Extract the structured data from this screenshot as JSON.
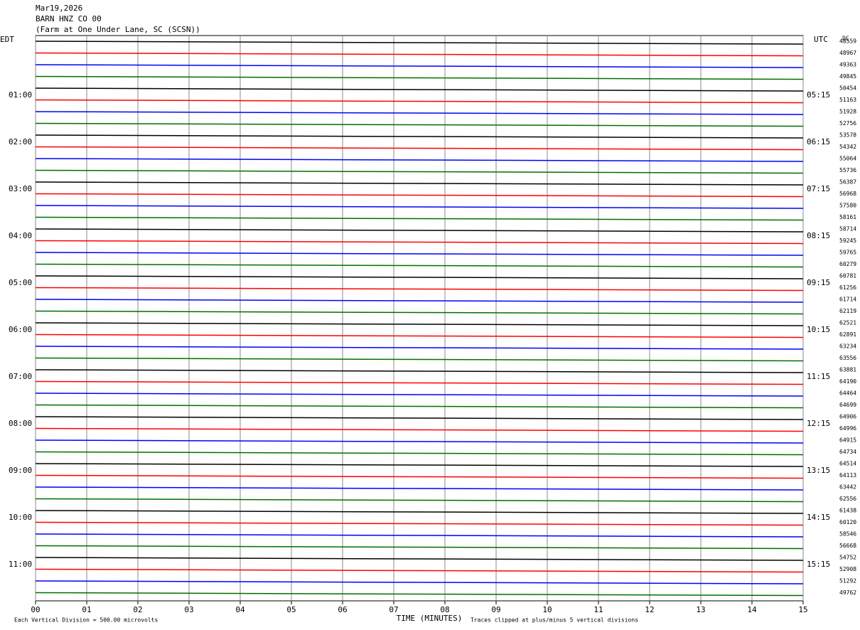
{
  "chart_data": {
    "type": "helicorder",
    "title": [
      "Mar19,2026",
      "BARN HNZ CO 00",
      "(Farm at One Under Lane, SC (SCSN))"
    ],
    "xlabel": "TIME (MINUTES)",
    "scale_note": "Each Vertical Division =  500.00 microvolts",
    "clip_note": "Traces clipped at plus/minus 5 vertical divisions",
    "dc_label": "DC",
    "xlim": [
      0,
      15
    ],
    "xticks": [
      {
        "value": 0,
        "label": "00"
      },
      {
        "value": 1,
        "label": "01"
      },
      {
        "value": 2,
        "label": "02"
      },
      {
        "value": 3,
        "label": "03"
      },
      {
        "value": 4,
        "label": "04"
      },
      {
        "value": 5,
        "label": "05"
      },
      {
        "value": 6,
        "label": "06"
      },
      {
        "value": 7,
        "label": "07"
      },
      {
        "value": 8,
        "label": "08"
      },
      {
        "value": 9,
        "label": "09"
      },
      10,
      11,
      12,
      13,
      14,
      15
    ],
    "trace_colors": [
      "#000000",
      "#ff0000",
      "#0000ff",
      "#007000"
    ],
    "left_labels": [
      "EDT",
      null,
      null,
      null,
      "01:00",
      null,
      null,
      null,
      "02:00",
      null,
      null,
      null,
      "03:00",
      null,
      null,
      null,
      "04:00",
      null,
      null,
      null,
      "05:00",
      null,
      null,
      null,
      "06:00",
      null,
      null,
      null,
      "07:00",
      null,
      null,
      null,
      "08:00",
      null,
      null,
      null,
      "09:00",
      null,
      null,
      null,
      "10:00",
      null,
      null,
      null,
      "11:00",
      null,
      null,
      null
    ],
    "right_labels": [
      "UTC",
      null,
      null,
      null,
      "05:15",
      null,
      null,
      null,
      "06:15",
      null,
      null,
      null,
      "07:15",
      null,
      null,
      null,
      "08:15",
      null,
      null,
      null,
      "09:15",
      null,
      null,
      null,
      "10:15",
      null,
      null,
      null,
      "11:15",
      null,
      null,
      null,
      "12:15",
      null,
      null,
      null,
      "13:15",
      null,
      null,
      null,
      "14:15",
      null,
      null,
      null,
      "15:15",
      null,
      null,
      null
    ],
    "dc_values": [
      48559,
      48967,
      49363,
      49845,
      50454,
      51163,
      51928,
      52756,
      53578,
      54342,
      55064,
      55736,
      56387,
      56968,
      57580,
      58161,
      58714,
      59245,
      59765,
      60279,
      60781,
      61256,
      61714,
      62119,
      62521,
      62891,
      63234,
      63556,
      63881,
      64190,
      64464,
      64699,
      64906,
      64996,
      64915,
      64734,
      64514,
      64113,
      63442,
      62556,
      61438,
      60120,
      58546,
      56668,
      54752,
      52908,
      51292,
      49762
    ]
  }
}
